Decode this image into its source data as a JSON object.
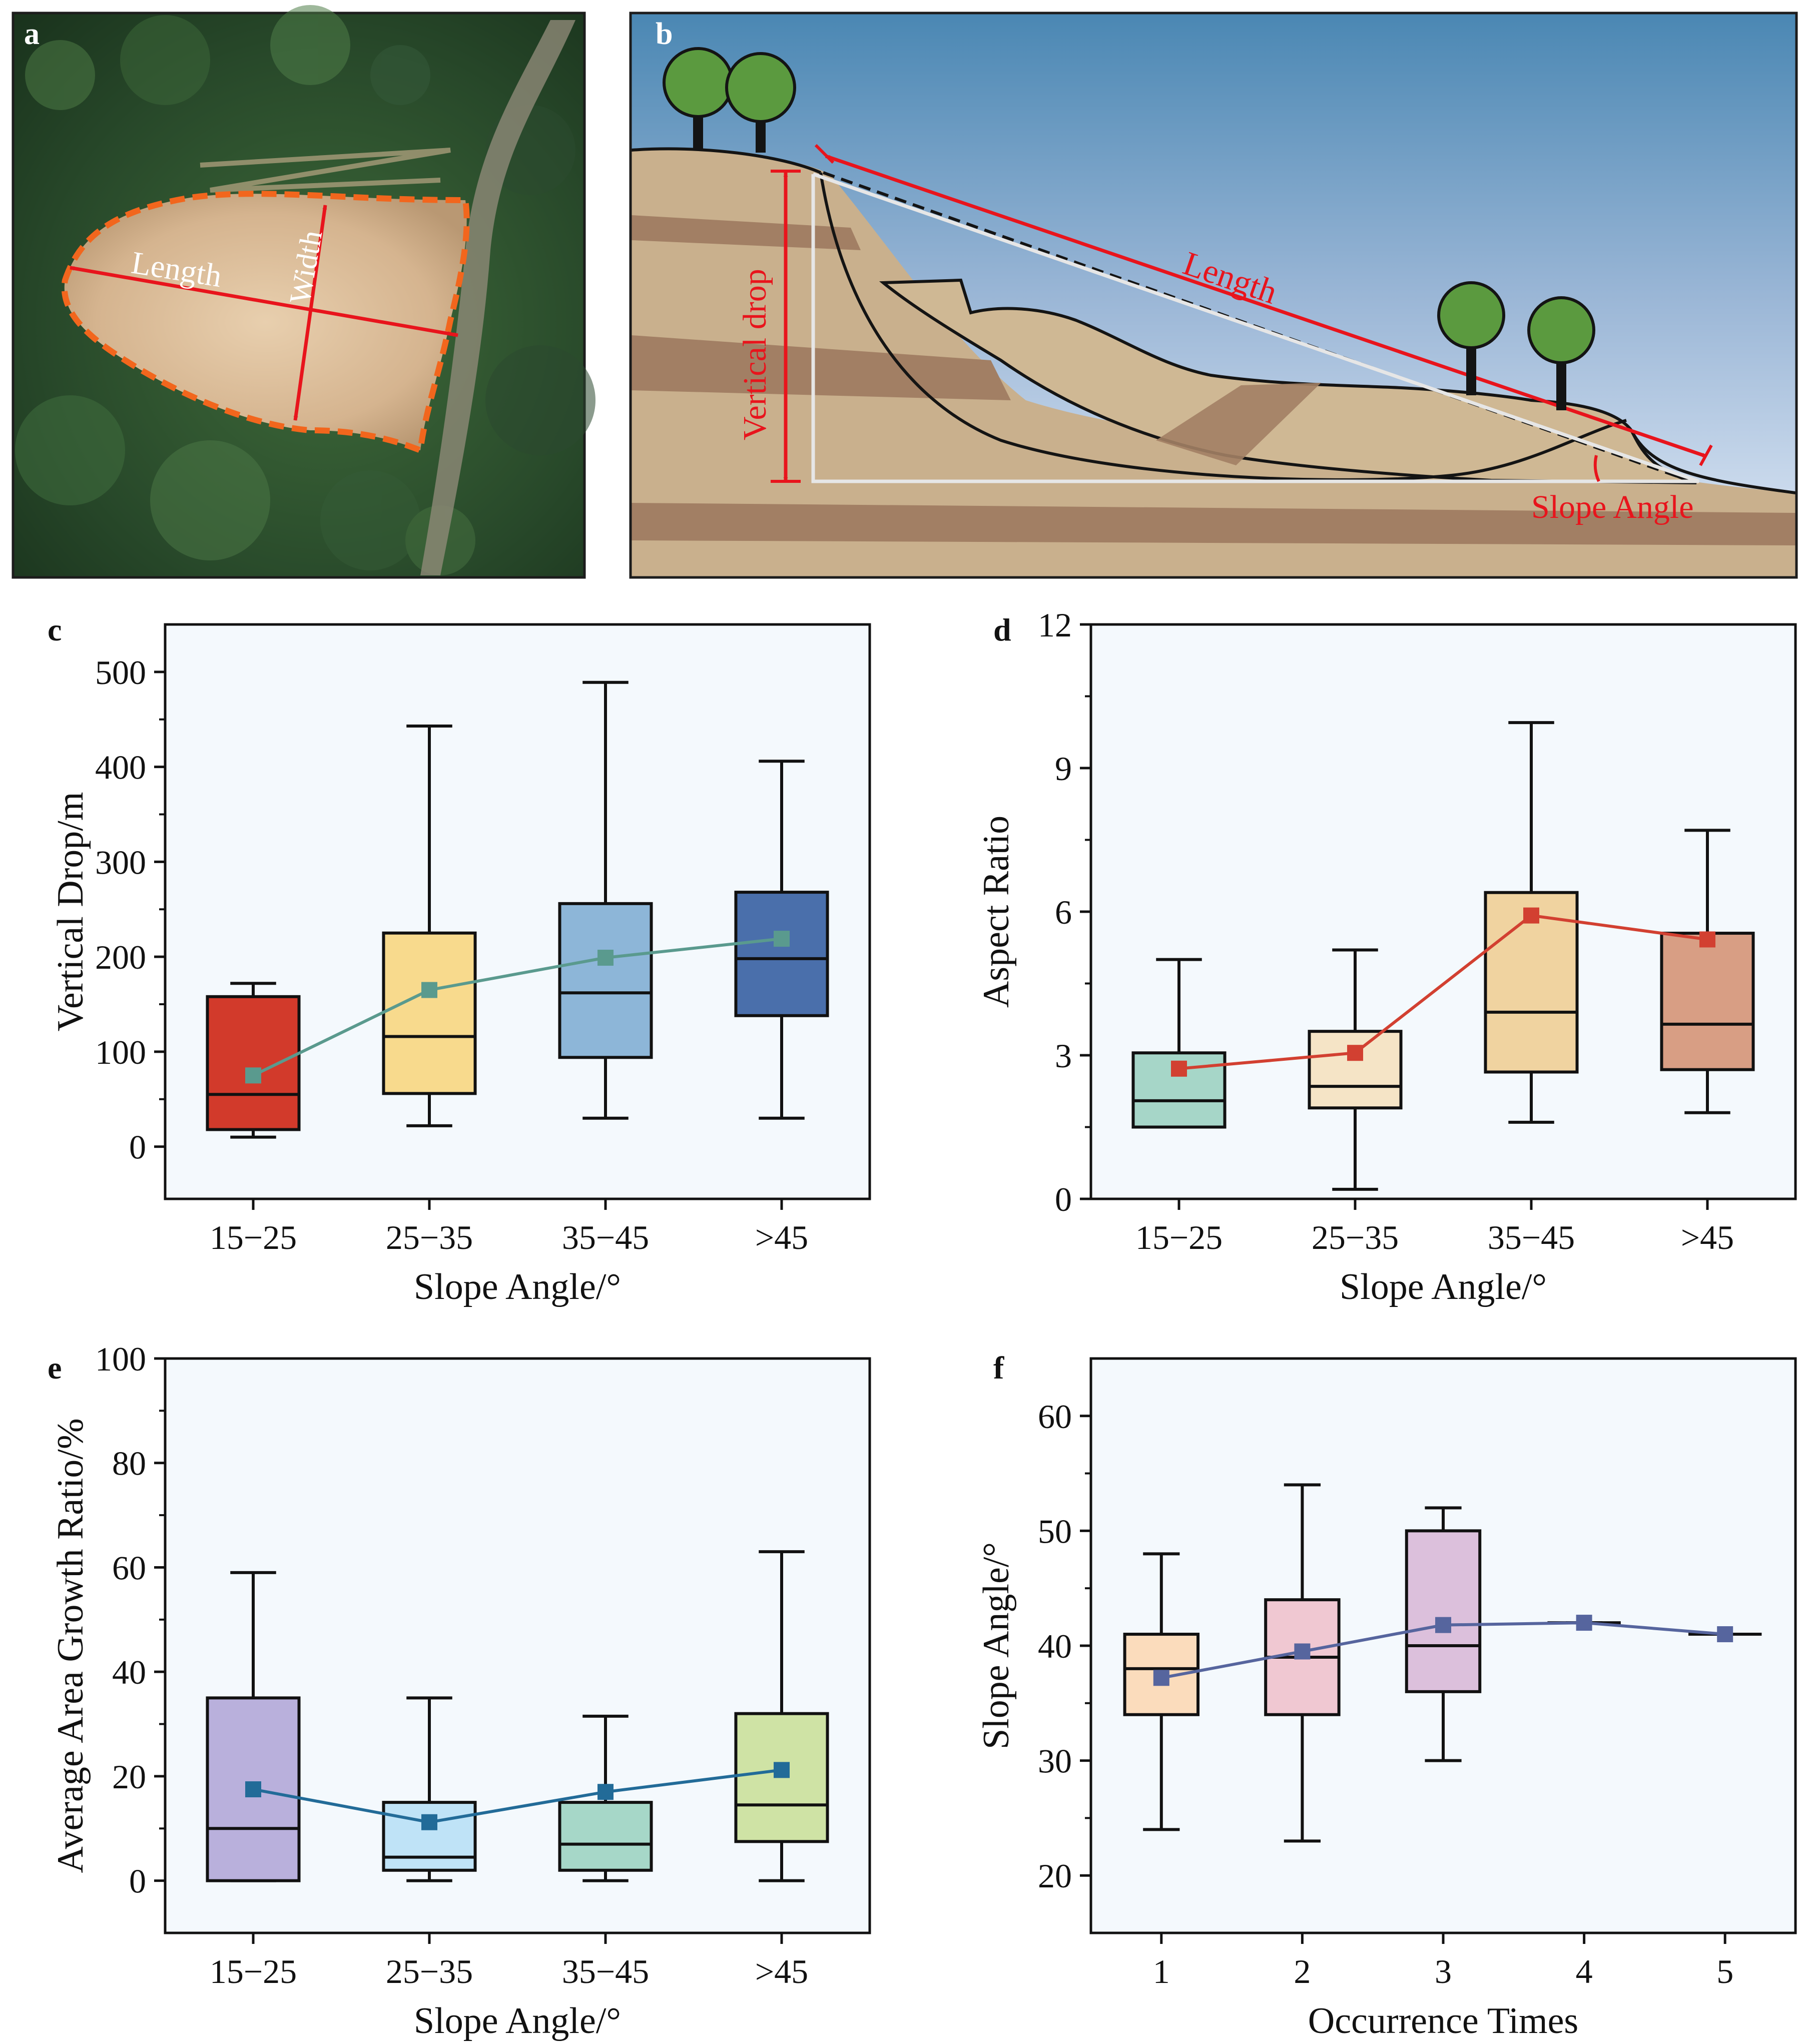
{
  "panels": {
    "a": {
      "letter": "a",
      "length_label": "Length",
      "width_label": "Width"
    },
    "b": {
      "letter": "b",
      "length_label": "Length",
      "vertical_drop_label": "Vertical drop",
      "slope_angle_label": "Slope Angle"
    }
  },
  "colors": {
    "annotation_red": "#e8141c",
    "scar_orange": "#f2661d",
    "plot_bg": "#f4f9fd"
  },
  "chart_data": [
    {
      "letter": "c",
      "type": "box",
      "xlabel": "Slope Angle/°",
      "ylabel": "Vertical Drop/m",
      "ylim": [
        -55,
        550
      ],
      "yticks": [
        0,
        100,
        200,
        300,
        400,
        500
      ],
      "categories": [
        "15−25",
        "25−35",
        "35−45",
        ">45"
      ],
      "boxes": [
        {
          "whislo": 10,
          "q1": 18,
          "med": 55,
          "q3": 158,
          "whishi": 172
        },
        {
          "whislo": 22,
          "q1": 56,
          "med": 116,
          "q3": 225,
          "whishi": 443
        },
        {
          "whislo": 30,
          "q1": 94,
          "med": 162,
          "q3": 256,
          "whishi": 489
        },
        {
          "whislo": 30,
          "q1": 138,
          "med": 198,
          "q3": 268,
          "whishi": 406
        }
      ],
      "mean": [
        75,
        165,
        199,
        219
      ],
      "box_colors": [
        "#d23a2b",
        "#f8da8d",
        "#8db6d8",
        "#4a6fab"
      ],
      "mean_color": "#5a9a8e"
    },
    {
      "letter": "d",
      "type": "box",
      "xlabel": "Slope Angle/°",
      "ylabel": "Aspect Ratio",
      "ylim": [
        0,
        12
      ],
      "yticks": [
        0,
        3,
        6,
        9,
        12
      ],
      "categories": [
        "15−25",
        "25−35",
        "35−45",
        ">45"
      ],
      "boxes": [
        {
          "whislo": 1.5,
          "q1": 1.5,
          "med": 2.05,
          "q3": 3.05,
          "whishi": 5.0
        },
        {
          "whislo": 0.2,
          "q1": 1.9,
          "med": 2.35,
          "q3": 3.5,
          "whishi": 5.2
        },
        {
          "whislo": 1.6,
          "q1": 2.65,
          "med": 3.9,
          "q3": 6.4,
          "whishi": 9.95
        },
        {
          "whislo": 1.8,
          "q1": 2.7,
          "med": 3.65,
          "q3": 5.55,
          "whishi": 7.7
        }
      ],
      "mean": [
        2.72,
        3.05,
        5.92,
        5.42
      ],
      "box_colors": [
        "#a6d6c8",
        "#f5e4c6",
        "#f0d3a0",
        "#d89e84"
      ],
      "mean_color": "#d24031"
    },
    {
      "letter": "e",
      "type": "box",
      "xlabel": "Slope Angle/°",
      "ylabel": "Average Area Growth Ratio/%",
      "ylim": [
        -10,
        100
      ],
      "yticks": [
        0,
        20,
        40,
        60,
        80,
        100
      ],
      "categories": [
        "15−25",
        "25−35",
        "35−45",
        ">45"
      ],
      "boxes": [
        {
          "whislo": 0,
          "q1": 0,
          "med": 10,
          "q3": 35,
          "whishi": 59
        },
        {
          "whislo": 0,
          "q1": 2,
          "med": 4.5,
          "q3": 15,
          "whishi": 35
        },
        {
          "whislo": 0,
          "q1": 2,
          "med": 7,
          "q3": 15,
          "whishi": 31.5
        },
        {
          "whislo": 0,
          "q1": 7.5,
          "med": 14.5,
          "q3": 32,
          "whishi": 63
        }
      ],
      "mean": [
        17.5,
        11.2,
        17,
        21.2
      ],
      "box_colors": [
        "#b9b0dc",
        "#bfe3f7",
        "#a6d7c8",
        "#cfe3a5"
      ],
      "mean_color": "#226b98"
    },
    {
      "letter": "f",
      "type": "box",
      "xlabel": "Occurrence Times",
      "ylabel": "Slope Angle/°",
      "ylim": [
        15,
        65
      ],
      "yticks": [
        20,
        30,
        40,
        50,
        60
      ],
      "categories": [
        "1",
        "2",
        "3",
        "4",
        "5"
      ],
      "boxes": [
        {
          "whislo": 24,
          "q1": 34,
          "med": 38,
          "q3": 41,
          "whishi": 48
        },
        {
          "whislo": 23,
          "q1": 34,
          "med": 39,
          "q3": 44,
          "whishi": 54
        },
        {
          "whislo": 30,
          "q1": 36,
          "med": 40,
          "q3": 50,
          "whishi": 52
        },
        {
          "whislo": 42,
          "q1": 42,
          "med": 42,
          "q3": 42,
          "whishi": 42
        },
        {
          "whislo": 41,
          "q1": 41,
          "med": 41,
          "q3": 41,
          "whishi": 41
        }
      ],
      "mean": [
        37.2,
        39.5,
        41.8,
        42,
        41
      ],
      "box_colors": [
        "#fbdcbc",
        "#f0c8d2",
        "#dcc0dc",
        "#ffffff",
        "#ffffff"
      ],
      "mean_color": "#56659e"
    }
  ]
}
